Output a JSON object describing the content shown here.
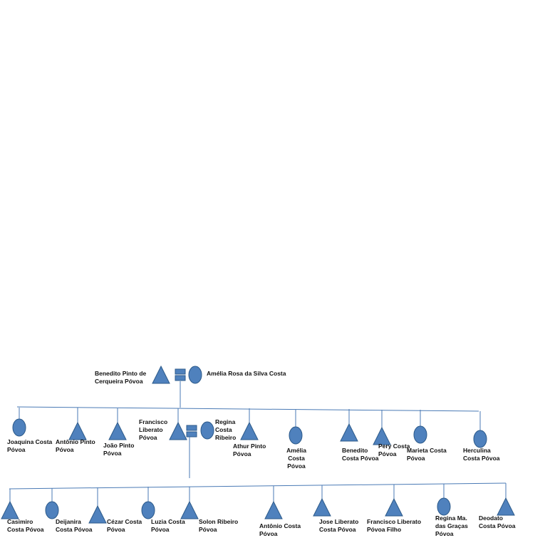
{
  "colors": {
    "shape_fill": "#4f81bd",
    "shape_stroke": "#2c5a8a",
    "line": "#4a7ab5"
  },
  "diagram": {
    "type": "genogram",
    "grandparents": {
      "father": {
        "name": "Benedito Pinto de\nCerqueira Póvoa",
        "shape": "triangle"
      },
      "mother": {
        "name": "Amélia Rosa da Silva Costa",
        "shape": "circle"
      }
    },
    "children": [
      {
        "name": "Joaquina Costa\nPóvoa",
        "shape": "circle"
      },
      {
        "name": "Antônio Pinto\nPóvoa",
        "shape": "triangle"
      },
      {
        "name": "João Pinto\nPóvoa",
        "shape": "triangle"
      },
      {
        "name": "Francisco\nLiberato\nPóvoa",
        "shape": "triangle"
      },
      {
        "name": "Regina\nCosta\nRibeiro",
        "shape": "circle"
      },
      {
        "name": "Athur Pinto\nPóvoa",
        "shape": "triangle"
      },
      {
        "name": "Amélia\nCosta\nPóvoa",
        "shape": "circle"
      },
      {
        "name": "Benedito\nCosta Póvoa",
        "shape": "triangle"
      },
      {
        "name": "Pery Costa\nPóvoa",
        "shape": "triangle"
      },
      {
        "name": "Marieta Costa\nPóvoa",
        "shape": "circle"
      },
      {
        "name": "Herculina\nCosta Póvoa",
        "shape": "circle"
      }
    ],
    "grandchildren": [
      {
        "name": "Casimiro\nCosta Póvoa",
        "shape": "triangle"
      },
      {
        "name": "Deijanira\nCosta Póvoa",
        "shape": "circle"
      },
      {
        "name": "Cézar Costa\nPóvoa",
        "shape": "triangle"
      },
      {
        "name": "Luzia Costa\nPóvoa",
        "shape": "circle"
      },
      {
        "name": "Solon Ribeiro\nPóvoa",
        "shape": "triangle"
      },
      {
        "name": "Antônio Costa\nPóvoa",
        "shape": "triangle"
      },
      {
        "name": "Jose Liberato\nCosta Póvoa",
        "shape": "triangle"
      },
      {
        "name": "Francisco Liberato\nPóvoa Filho",
        "shape": "triangle"
      },
      {
        "name": "Regina Ma.\ndas Graças\nPóvoa",
        "shape": "circle"
      },
      {
        "name": "Deodato\nCosta Póvoa",
        "shape": "triangle"
      }
    ]
  }
}
